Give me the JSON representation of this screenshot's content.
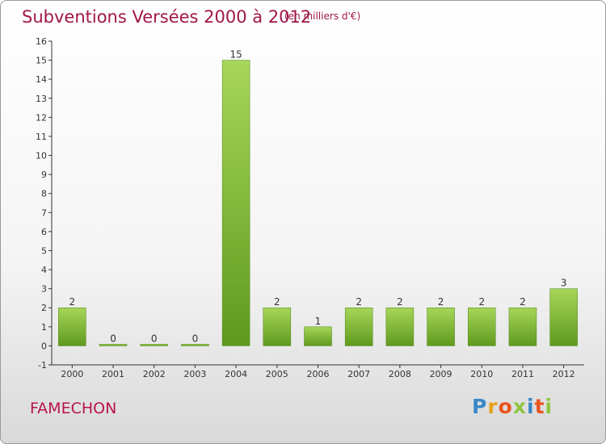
{
  "header": {
    "title": "Subventions Versées 2000 à 2012",
    "unit": "(en milliers d'€)"
  },
  "footer": {
    "commune": "FAMECHON",
    "logo_letters": [
      "P",
      "r",
      "o",
      "x",
      "i",
      "t",
      "i"
    ],
    "logo_colors": [
      "#3a87c8",
      "#e8a21c",
      "#e8541c",
      "#8fc63f",
      "#3a87c8",
      "#e8541c",
      "#8fc63f"
    ]
  },
  "colors": {
    "bar_light": "#a6d65a",
    "bar_dark": "#5f9a1c",
    "title": "#a0174a"
  },
  "chart_data": {
    "type": "bar",
    "categories": [
      "2000",
      "2001",
      "2002",
      "2003",
      "2004",
      "2005",
      "2006",
      "2007",
      "2008",
      "2009",
      "2010",
      "2011",
      "2012"
    ],
    "values": [
      2,
      0,
      0,
      0,
      15,
      2,
      1,
      2,
      2,
      2,
      2,
      2,
      3
    ],
    "ylim": [
      -1,
      16
    ],
    "yticks": [
      -1,
      0,
      1,
      2,
      3,
      4,
      5,
      6,
      7,
      8,
      9,
      10,
      11,
      12,
      13,
      14,
      15,
      16
    ],
    "grid": false,
    "legend": "none"
  }
}
